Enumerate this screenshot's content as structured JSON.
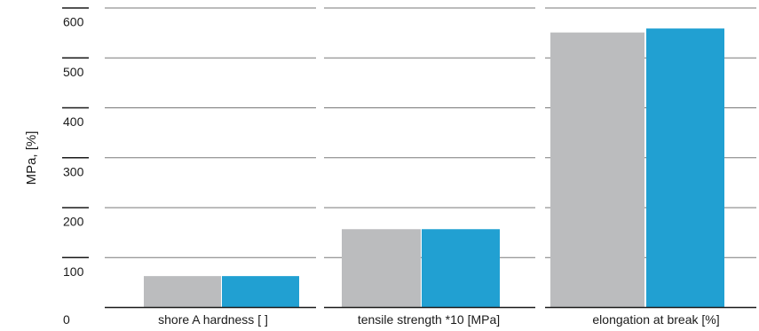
{
  "chart_data": {
    "type": "bar",
    "title": "",
    "xlabel": "",
    "ylabel": "MPa, [%]",
    "ylim": [
      0,
      600
    ],
    "yticks": [
      {
        "value": 0,
        "label": "0"
      },
      {
        "value": 100,
        "label": "100"
      },
      {
        "value": 200,
        "label": "200"
      },
      {
        "value": 300,
        "label": "300"
      },
      {
        "value": 400,
        "label": "400"
      },
      {
        "value": 500,
        "label": "500"
      },
      {
        "value": 600,
        "label": "600"
      }
    ],
    "categories": [
      "shore A hardness [ ]",
      "tensile strength *10 [MPa]",
      "elongation at break [%]"
    ],
    "series": [
      {
        "values": [
          62,
          156,
          550
        ],
        "color": "#bbbcbe"
      },
      {
        "values": [
          62,
          156,
          558
        ],
        "color": "#21a0d2"
      }
    ],
    "grid": true,
    "legend": "none"
  }
}
